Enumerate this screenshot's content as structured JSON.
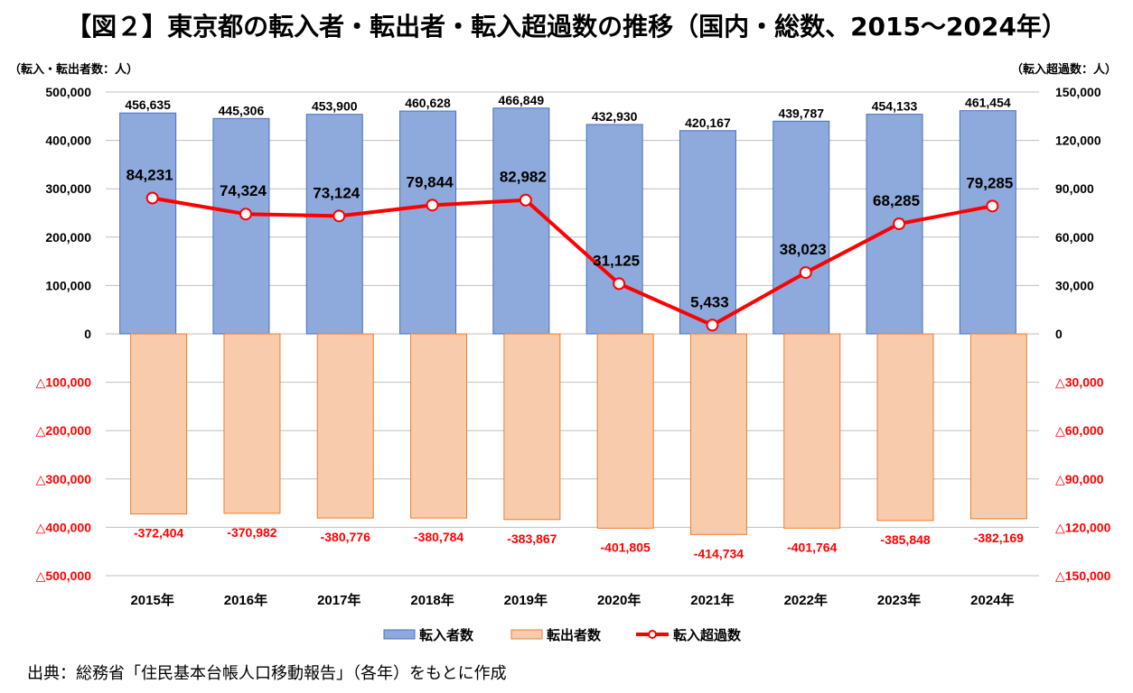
{
  "title": "【図２】東京都の転入者・転出者・転入超過数の推移（国内・総数、2015～2024年）",
  "unit_left": "（転入・転出者数：人）",
  "unit_right": "（転入超過数：人）",
  "source": "出典：総務省「住民基本台帳人口移動報告」（各年）をもとに作成",
  "colors": {
    "inflow": "#8EA9DB",
    "inflow_border": "#4472C4",
    "outflow": "#F8CBAD",
    "outflow_border": "#ED7D31",
    "net": "#FF0000",
    "negative_tick": "#FF0000",
    "grid": "#BFBFBF"
  },
  "chart_data": {
    "type": "bar+line",
    "categories": [
      "2015年",
      "2016年",
      "2017年",
      "2018年",
      "2019年",
      "2020年",
      "2021年",
      "2022年",
      "2023年",
      "2024年"
    ],
    "series": [
      {
        "name": "転入者数",
        "type": "bar",
        "axis": "left",
        "values": [
          456635,
          445306,
          453900,
          460628,
          466849,
          432930,
          420167,
          439787,
          454133,
          461454
        ],
        "labels": [
          "456,635",
          "445,306",
          "453,900",
          "460,628",
          "466,849",
          "432,930",
          "420,167",
          "439,787",
          "454,133",
          "461,454"
        ]
      },
      {
        "name": "転出者数",
        "type": "bar",
        "axis": "left",
        "values": [
          -372404,
          -370982,
          -380776,
          -380784,
          -383867,
          -401805,
          -414734,
          -401764,
          -385848,
          -382169
        ],
        "labels": [
          "-372,404",
          "-370,982",
          "-380,776",
          "-380,784",
          "-383,867",
          "-401,805",
          "-414,734",
          "-401,764",
          "-385,848",
          "-382,169"
        ]
      },
      {
        "name": "転入超過数",
        "type": "line",
        "axis": "right",
        "values": [
          84231,
          74324,
          73124,
          79844,
          82982,
          31125,
          5433,
          38023,
          68285,
          79285
        ],
        "labels": [
          "84,231",
          "74,324",
          "73,124",
          "79,844",
          "82,982",
          "31,125",
          "5,433",
          "38,023",
          "68,285",
          "79,285"
        ]
      }
    ],
    "y_left": {
      "lim": [
        -500000,
        500000
      ],
      "ticks": [
        500000,
        400000,
        300000,
        200000,
        100000,
        0,
        -100000,
        -200000,
        -300000,
        -400000,
        -500000
      ],
      "tick_labels": [
        "500,000",
        "400,000",
        "300,000",
        "200,000",
        "100,000",
        "0",
        "△100,000",
        "△200,000",
        "△300,000",
        "△400,000",
        "△500,000"
      ]
    },
    "y_right": {
      "lim": [
        -150000,
        150000
      ],
      "ticks": [
        150000,
        120000,
        90000,
        60000,
        30000,
        0,
        -30000,
        -60000,
        -90000,
        -120000,
        -150000
      ],
      "tick_labels": [
        "150,000",
        "120,000",
        "90,000",
        "60,000",
        "30,000",
        "0",
        "△30,000",
        "△60,000",
        "△90,000",
        "△120,000",
        "△150,000"
      ]
    },
    "grid": true,
    "legend_position": "bottom"
  }
}
